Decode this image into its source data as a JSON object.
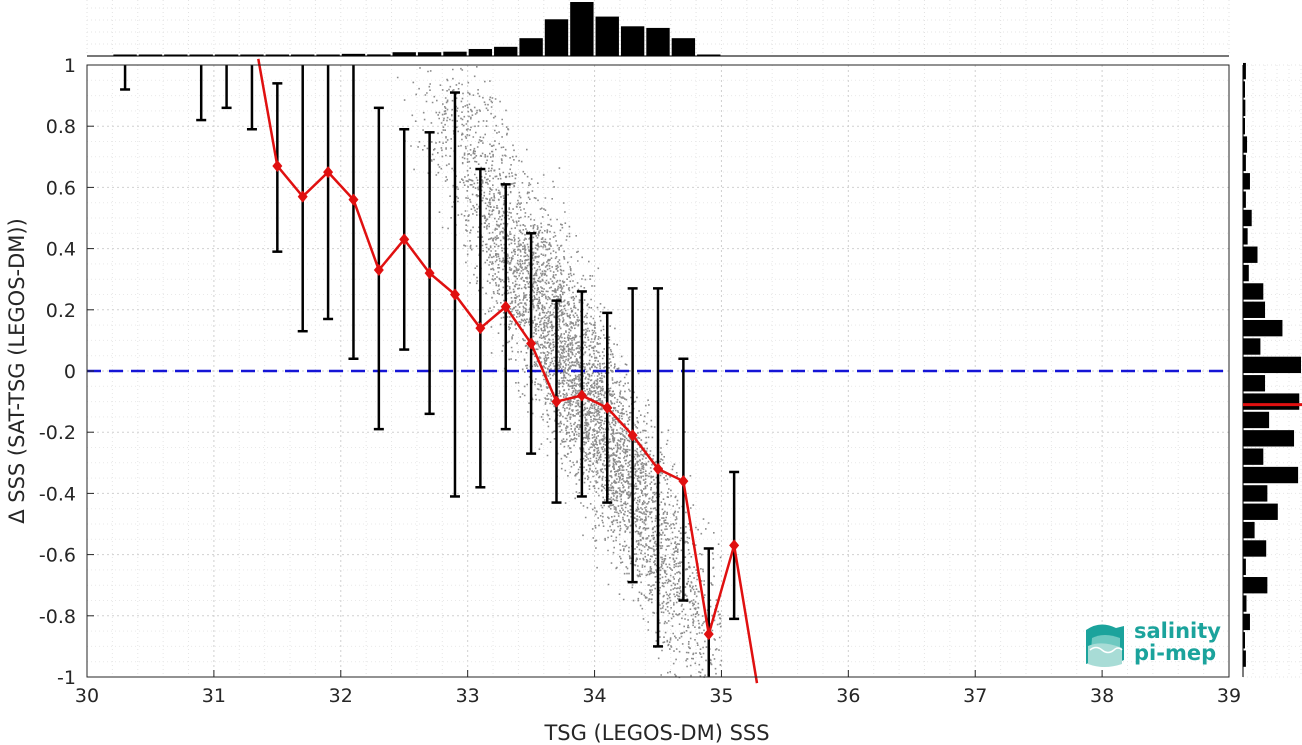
{
  "chart_data": {
    "type": "scatter",
    "title": "",
    "xlabel": "TSG (LEGOS-DM) SSS",
    "ylabel": "Δ SSS (SAT-TSG (LEGOS-DM))",
    "xlim": [
      30,
      39
    ],
    "ylim": [
      -1,
      1
    ],
    "x_ticks": [
      "30",
      "31",
      "32",
      "33",
      "34",
      "35",
      "36",
      "37",
      "38",
      "39"
    ],
    "y_ticks": [
      "-1",
      "-0.8",
      "-0.6",
      "-0.4",
      "-0.2",
      "0",
      "0.2",
      "0.4",
      "0.6",
      "0.8",
      "1"
    ],
    "grid": true,
    "reference_line": {
      "y": 0,
      "style": "dashed",
      "color": "#1515d6"
    },
    "median_series": {
      "color": "#e01010",
      "x": [
        31.5,
        31.7,
        31.9,
        32.1,
        32.3,
        32.5,
        32.7,
        32.9,
        33.1,
        33.3,
        33.5,
        33.7,
        33.9,
        34.1,
        34.3,
        34.5,
        34.7,
        34.9,
        35.1
      ],
      "y": [
        0.67,
        0.57,
        0.65,
        0.56,
        0.33,
        0.43,
        0.32,
        0.25,
        0.14,
        0.21,
        0.09,
        -0.1,
        -0.08,
        -0.12,
        -0.21,
        -0.32,
        -0.36,
        -0.86,
        -0.57
      ]
    },
    "median_line_extensions": [
      {
        "x": [
          31.35,
          31.5
        ],
        "y": [
          1.02,
          0.67
        ]
      },
      {
        "x": [
          35.1,
          35.28
        ],
        "y": [
          -0.57,
          -1.02
        ]
      }
    ],
    "error_bars": [
      {
        "x": 30.3,
        "low": 0.92,
        "high": 1.0
      },
      {
        "x": 30.9,
        "low": 0.82,
        "high": 1.0
      },
      {
        "x": 31.1,
        "low": 0.86,
        "high": 1.0
      },
      {
        "x": 31.3,
        "low": 0.79,
        "high": 1.0
      },
      {
        "x": 31.5,
        "low": 0.39,
        "high": 0.94
      },
      {
        "x": 31.7,
        "low": 0.13,
        "high": 1.0
      },
      {
        "x": 31.9,
        "low": 0.17,
        "high": 1.0
      },
      {
        "x": 32.1,
        "low": 0.04,
        "high": 1.0
      },
      {
        "x": 32.3,
        "low": -0.19,
        "high": 0.86
      },
      {
        "x": 32.5,
        "low": 0.07,
        "high": 0.79
      },
      {
        "x": 32.7,
        "low": -0.14,
        "high": 0.78
      },
      {
        "x": 32.9,
        "low": -0.41,
        "high": 0.91
      },
      {
        "x": 33.1,
        "low": -0.38,
        "high": 0.66
      },
      {
        "x": 33.3,
        "low": -0.19,
        "high": 0.61
      },
      {
        "x": 33.5,
        "low": -0.27,
        "high": 0.45
      },
      {
        "x": 33.7,
        "low": -0.43,
        "high": 0.23
      },
      {
        "x": 33.9,
        "low": -0.41,
        "high": 0.26
      },
      {
        "x": 34.1,
        "low": -0.43,
        "high": 0.19
      },
      {
        "x": 34.3,
        "low": -0.69,
        "high": 0.27
      },
      {
        "x": 34.5,
        "low": -0.9,
        "high": 0.27
      },
      {
        "x": 34.7,
        "low": -0.75,
        "high": 0.04
      },
      {
        "x": 34.9,
        "low": -1.0,
        "high": -0.58
      },
      {
        "x": 35.1,
        "low": -0.81,
        "high": -0.33
      }
    ],
    "scatter_cloud": {
      "color": "#8c8c8c",
      "points": 5200,
      "slope": -0.82,
      "center_x": 33.9,
      "center_y": -0.05
    },
    "x_histogram": {
      "bins": [
        30.3,
        30.5,
        30.7,
        30.9,
        31.1,
        31.3,
        31.5,
        31.7,
        31.9,
        32.1,
        32.3,
        32.5,
        32.7,
        32.9,
        33.1,
        33.3,
        33.5,
        33.7,
        33.9,
        34.1,
        34.3,
        34.5,
        34.7,
        34.9
      ],
      "counts": [
        0.015,
        0.01,
        0.01,
        0.015,
        0.015,
        0.015,
        0.025,
        0.02,
        0.025,
        0.04,
        0.03,
        0.07,
        0.07,
        0.08,
        0.13,
        0.17,
        0.33,
        0.68,
        1.0,
        0.73,
        0.55,
        0.52,
        0.33,
        0.01
      ]
    },
    "y_histogram": {
      "bins": [
        0.98,
        0.92,
        0.86,
        0.8,
        0.74,
        0.68,
        0.62,
        0.56,
        0.5,
        0.44,
        0.38,
        0.32,
        0.26,
        0.2,
        0.14,
        0.08,
        0.02,
        -0.04,
        -0.1,
        -0.16,
        -0.22,
        -0.28,
        -0.34,
        -0.4,
        -0.46,
        -0.52,
        -0.58,
        -0.64,
        -0.7,
        -0.76,
        -0.82,
        -0.88,
        -0.94
      ],
      "counts": [
        0.05,
        0.03,
        0.04,
        0.03,
        0.07,
        0.05,
        0.12,
        0.05,
        0.15,
        0.08,
        0.25,
        0.1,
        0.35,
        0.38,
        0.68,
        0.3,
        1.0,
        0.38,
        0.97,
        0.45,
        0.88,
        0.35,
        0.95,
        0.42,
        0.6,
        0.2,
        0.4,
        0.05,
        0.42,
        0.06,
        0.12,
        0.02,
        0.05
      ],
      "median": -0.11,
      "median_color": "#e01010"
    }
  },
  "logo": {
    "line1": "salinity",
    "line2": "pi-mep",
    "icon": "wave-book-icon",
    "color": "#1ba39c"
  }
}
